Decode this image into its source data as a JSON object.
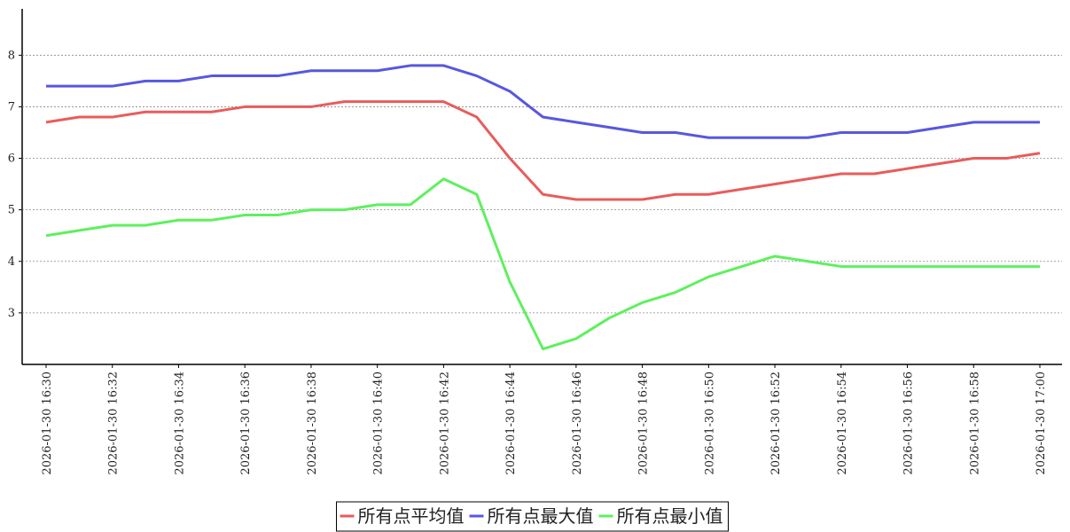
{
  "chart_data": {
    "type": "line",
    "categories": [
      "2026-01-30 16:30",
      null,
      "2026-01-30 16:32",
      null,
      "2026-01-30 16:34",
      null,
      "2026-01-30 16:36",
      null,
      "2026-01-30 16:38",
      null,
      "2026-01-30 16:40",
      null,
      "2026-01-30 16:42",
      null,
      "2026-01-30 16:44",
      null,
      "2026-01-30 16:46",
      null,
      "2026-01-30 16:48",
      null,
      "2026-01-30 16:50",
      null,
      "2026-01-30 16:52",
      null,
      "2026-01-30 16:54",
      null,
      "2026-01-30 16:56",
      null,
      "2026-01-30 16:58",
      null,
      "2026-01-30 17:00"
    ],
    "series": [
      {
        "name": "所有点平均值",
        "color": "#e85c5c",
        "values": [
          6.7,
          6.8,
          6.8,
          6.9,
          6.9,
          6.9,
          7.0,
          7.0,
          7.0,
          7.1,
          7.1,
          7.1,
          7.1,
          6.8,
          6.0,
          5.3,
          5.2,
          5.2,
          5.2,
          5.3,
          5.3,
          5.4,
          5.5,
          5.6,
          5.7,
          5.7,
          5.8,
          5.9,
          6.0,
          6.0,
          6.1
        ]
      },
      {
        "name": "所有点最大值",
        "color": "#5757e0",
        "values": [
          7.4,
          7.4,
          7.4,
          7.5,
          7.5,
          7.6,
          7.6,
          7.6,
          7.7,
          7.7,
          7.7,
          7.8,
          7.8,
          7.6,
          7.3,
          6.8,
          6.7,
          6.6,
          6.5,
          6.5,
          6.4,
          6.4,
          6.4,
          6.4,
          6.5,
          6.5,
          6.5,
          6.6,
          6.7,
          6.7,
          6.7
        ]
      },
      {
        "name": "所有点最小值",
        "color": "#5ef05e",
        "values": [
          4.5,
          4.6,
          4.7,
          4.7,
          4.8,
          4.8,
          4.9,
          4.9,
          5.0,
          5.0,
          5.1,
          5.1,
          5.6,
          5.3,
          3.6,
          2.3,
          2.5,
          2.9,
          3.2,
          3.4,
          3.7,
          3.9,
          4.1,
          4.0,
          3.9,
          3.9,
          3.9,
          3.9,
          3.9,
          3.9,
          3.9
        ]
      }
    ],
    "ylim": [
      2,
      8.9
    ],
    "yticks": [
      3,
      4,
      5,
      6,
      7,
      8
    ],
    "grid": true,
    "legend": "bottom"
  }
}
